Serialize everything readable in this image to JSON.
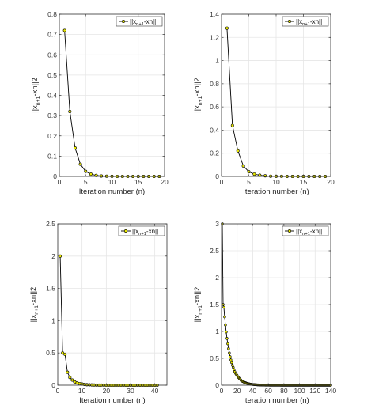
{
  "chart_data": [
    {
      "type": "line",
      "xlabel": "Iteration number (n)",
      "ylabel": "||x_{n+1}-x_n||^2",
      "legend": "||x_{n+1}-x_n||",
      "legend_position": "top-right",
      "grid": true,
      "xlim": [
        0,
        20
      ],
      "ylim": [
        0,
        0.8
      ],
      "xticks": [
        0,
        5,
        10,
        15,
        20
      ],
      "xtick_labels": [
        "0",
        "5",
        "10",
        "15",
        "20"
      ],
      "yticks": [
        0,
        0.1,
        0.2,
        0.3,
        0.4,
        0.5,
        0.6,
        0.7,
        0.8
      ],
      "ytick_labels": [
        "0",
        "0.1",
        "0.2",
        "0.3",
        "0.4",
        "0.5",
        "0.6",
        "0.7",
        "0.8"
      ],
      "x": [
        1,
        2,
        3,
        4,
        5,
        6,
        7,
        8,
        9,
        10,
        11,
        12,
        13,
        14,
        15,
        16,
        17,
        18,
        19
      ],
      "y": [
        0.72,
        0.32,
        0.14,
        0.06,
        0.025,
        0.011,
        0.005,
        0.002,
        0.001,
        0.0005,
        0.0002,
        0.0001,
        0.0001,
        0,
        0,
        0,
        0,
        0,
        0
      ],
      "line_color": "#000000",
      "marker_color": "#e8e800"
    },
    {
      "type": "line",
      "xlabel": "Iteration number (n)",
      "ylabel": "||x_{n+1}-x_n||^2",
      "legend": "||x_{n+1}-x_n||",
      "legend_position": "top-right",
      "grid": true,
      "xlim": [
        0,
        20
      ],
      "ylim": [
        0,
        1.4
      ],
      "xticks": [
        0,
        5,
        10,
        15,
        20
      ],
      "xtick_labels": [
        "0",
        "5",
        "10",
        "15",
        "20"
      ],
      "yticks": [
        0,
        0.2,
        0.4,
        0.6,
        0.8,
        1.0,
        1.2,
        1.4
      ],
      "ytick_labels": [
        "0",
        "0.2",
        "0.4",
        "0.6",
        "0.8",
        "1",
        "1.2",
        "1.4"
      ],
      "x": [
        1,
        2,
        3,
        4,
        5,
        6,
        7,
        8,
        9,
        10,
        11,
        12,
        13,
        14,
        15,
        16,
        17,
        18,
        19
      ],
      "y": [
        1.28,
        0.44,
        0.22,
        0.09,
        0.04,
        0.02,
        0.01,
        0.005,
        0.002,
        0.001,
        0.0005,
        0.0002,
        0.0001,
        0,
        0,
        0,
        0,
        0,
        0
      ],
      "line_color": "#000000",
      "marker_color": "#e8e800"
    },
    {
      "type": "line",
      "xlabel": "Iteration number (n)",
      "ylabel": "||x_{n+1}-x_n||^2",
      "legend": "||x_{n+1}-x_n||",
      "legend_position": "top-right",
      "grid": true,
      "xlim": [
        0,
        45
      ],
      "ylim": [
        0,
        2.5
      ],
      "xticks": [
        0,
        10,
        20,
        30,
        40
      ],
      "xtick_labels": [
        "0",
        "10",
        "20",
        "30",
        "40"
      ],
      "yticks": [
        0,
        0.5,
        1.0,
        1.5,
        2.0,
        2.5
      ],
      "ytick_labels": [
        "0",
        "0.5",
        "1",
        "1.5",
        "2",
        "2.5"
      ],
      "x": [
        1,
        2,
        3,
        4,
        5,
        6,
        7,
        8,
        9,
        10,
        11,
        12,
        13,
        14,
        15,
        16,
        17,
        18,
        19,
        20,
        21,
        22,
        23,
        24,
        25,
        26,
        27,
        28,
        29,
        30,
        31,
        32,
        33,
        34,
        35,
        36,
        37,
        38,
        39,
        40,
        41
      ],
      "y": [
        2.0,
        0.5,
        0.48,
        0.2,
        0.12,
        0.08,
        0.05,
        0.035,
        0.025,
        0.018,
        0.012,
        0.008,
        0.006,
        0.004,
        0.003,
        0.002,
        0.0015,
        0.001,
        0.0008,
        0.0006,
        0.0004,
        0.0003,
        0.0002,
        0.0002,
        0.0001,
        0.0001,
        0.0001,
        0,
        0,
        0,
        0,
        0,
        0,
        0,
        0,
        0,
        0,
        0,
        0,
        0,
        0
      ],
      "line_color": "#000000",
      "marker_color": "#e8e800"
    },
    {
      "type": "line",
      "xlabel": "Iteration number (n)",
      "ylabel": "||x_{n+1}-x_n||^2",
      "legend": "||x_{n+1}-x_n||",
      "legend_position": "top-right",
      "grid": true,
      "xlim": [
        0,
        140
      ],
      "ylim": [
        0,
        3
      ],
      "xticks": [
        0,
        20,
        40,
        60,
        80,
        100,
        120,
        140
      ],
      "xtick_labels": [
        "0",
        "20",
        "40",
        "60",
        "80",
        "100",
        "120",
        "140"
      ],
      "yticks": [
        0,
        0.5,
        1.0,
        1.5,
        2.0,
        2.5,
        3.0
      ],
      "ytick_labels": [
        "0",
        "0.5",
        "1",
        "1.5",
        "2",
        "2.5",
        "3"
      ],
      "x": [
        1,
        2,
        3,
        4,
        5,
        6,
        7,
        8,
        9,
        10,
        11,
        12,
        13,
        14,
        15,
        16,
        17,
        18,
        19,
        20,
        21,
        22,
        23,
        24,
        25,
        26,
        27,
        28,
        29,
        30,
        31,
        32,
        33,
        34,
        35,
        36,
        37,
        38,
        39,
        40,
        41,
        42,
        43,
        44,
        45,
        46,
        47,
        48,
        49,
        50,
        51,
        52,
        53,
        54,
        55,
        56,
        57,
        58,
        59,
        60,
        61,
        62,
        63,
        64,
        65,
        66,
        67,
        68,
        69,
        70,
        71,
        72,
        73,
        74,
        75,
        76,
        77,
        78,
        79,
        80,
        81,
        82,
        83,
        84,
        85,
        86,
        87,
        88,
        89,
        90,
        91,
        92,
        93,
        94,
        95,
        96,
        97,
        98,
        99,
        100,
        101,
        102,
        103,
        104,
        105,
        106,
        107,
        108,
        109,
        110,
        111,
        112,
        113,
        114,
        115,
        116,
        117,
        118,
        119,
        120,
        121,
        122,
        123,
        124,
        125,
        126,
        127,
        128,
        129,
        130,
        131,
        132,
        133,
        134,
        135,
        136,
        137,
        138,
        139,
        140
      ],
      "y": [
        3.0,
        1.5,
        1.45,
        1.27,
        1.12,
        0.99,
        0.87,
        0.77,
        0.68,
        0.6,
        0.53,
        0.47,
        0.42,
        0.37,
        0.33,
        0.29,
        0.25,
        0.22,
        0.2,
        0.18,
        0.15,
        0.14,
        0.12,
        0.11,
        0.09,
        0.08,
        0.07,
        0.064,
        0.056,
        0.049,
        0.044,
        0.038,
        0.034,
        0.03,
        0.026,
        0.023,
        0.02,
        0.018,
        0.016,
        0.014,
        0.012,
        0.011,
        0.01,
        0.009,
        0.008,
        0.007,
        0.006,
        0.005,
        0.0045,
        0.004,
        0.0035,
        0.003,
        0.0027,
        0.0024,
        0.0021,
        0.0018,
        0.0016,
        0.0014,
        0.0013,
        0.0011,
        0.001,
        0.0009,
        0.0008,
        0.0007,
        0.0006,
        0.0005,
        0.0005,
        0.0004,
        0.0004,
        0.0003,
        0.0003,
        0.0003,
        0.0002,
        0.0002,
        0.0002,
        0.0001,
        0.0001,
        0.0001,
        0.0001,
        0.0001,
        0.0001,
        0.0001,
        0,
        0,
        0,
        0,
        0,
        0,
        0,
        0,
        0,
        0,
        0,
        0,
        0,
        0,
        0,
        0,
        0,
        0,
        0,
        0,
        0,
        0,
        0,
        0,
        0,
        0,
        0,
        0,
        0,
        0,
        0,
        0,
        0,
        0,
        0,
        0,
        0,
        0,
        0,
        0,
        0,
        0,
        0,
        0,
        0,
        0,
        0,
        0,
        0,
        0,
        0,
        0,
        0,
        0,
        0,
        0,
        0,
        0
      ],
      "line_color": "#000000",
      "marker_color": "#e8e800"
    }
  ]
}
